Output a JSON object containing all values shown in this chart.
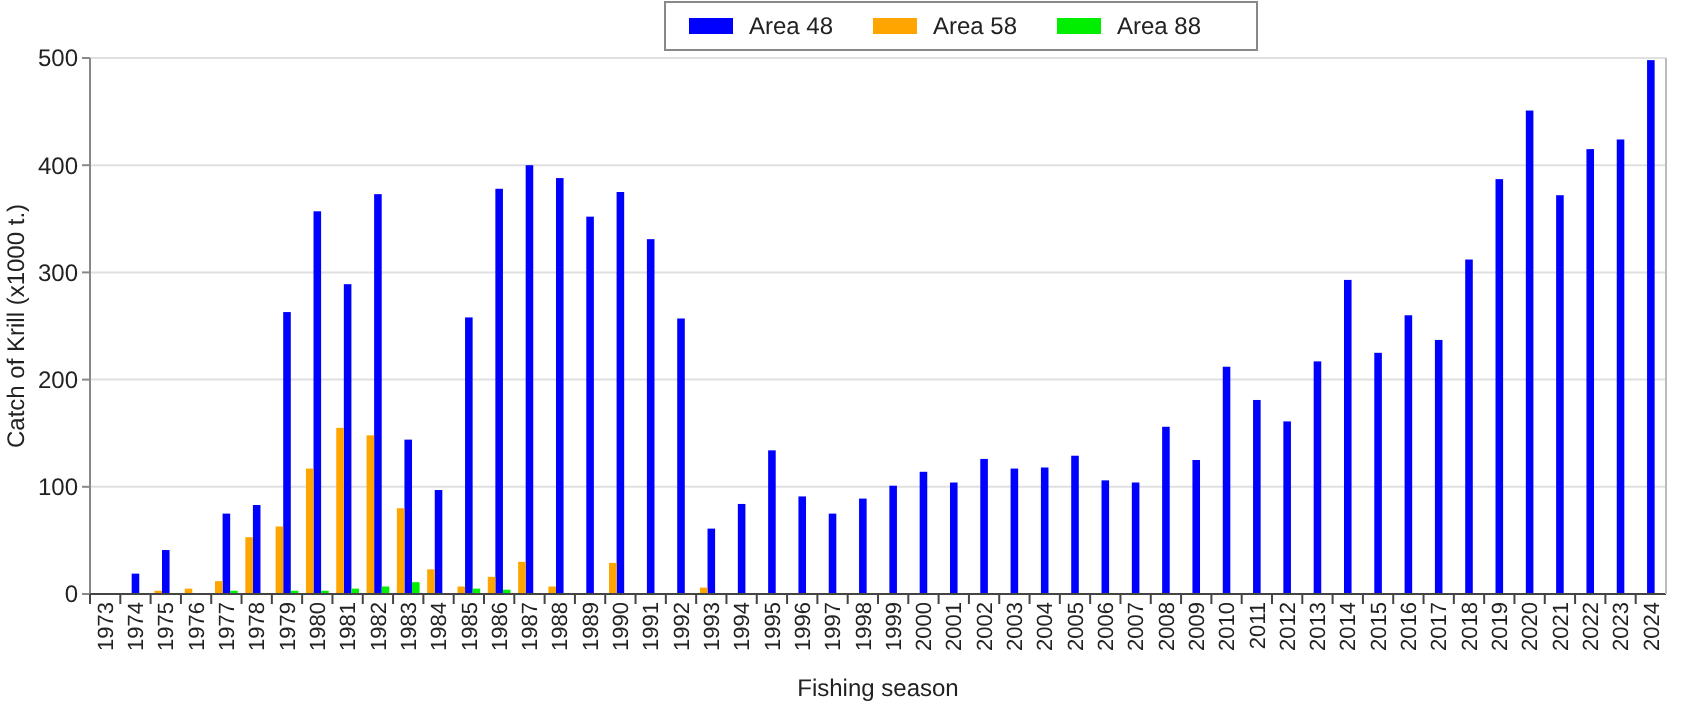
{
  "chart_data": {
    "type": "bar",
    "xlabel": "Fishing season",
    "ylabel": "Catch of Krill (x1000 t.)",
    "categories": [
      "1973",
      "1974",
      "1975",
      "1976",
      "1977",
      "1978",
      "1979",
      "1980",
      "1981",
      "1982",
      "1983",
      "1984",
      "1985",
      "1986",
      "1987",
      "1988",
      "1989",
      "1990",
      "1991",
      "1992",
      "1993",
      "1994",
      "1995",
      "1996",
      "1997",
      "1998",
      "1999",
      "2000",
      "2001",
      "2002",
      "2003",
      "2004",
      "2005",
      "2006",
      "2007",
      "2008",
      "2009",
      "2010",
      "2011",
      "2012",
      "2013",
      "2014",
      "2015",
      "2016",
      "2017",
      "2018",
      "2019",
      "2020",
      "2021",
      "2022",
      "2023",
      "2024"
    ],
    "series": [
      {
        "name": "Area 48",
        "color": "#0000ff",
        "values": [
          0,
          19,
          41,
          null,
          75,
          83,
          263,
          357,
          289,
          373,
          144,
          97,
          258,
          378,
          400,
          388,
          352,
          375,
          331,
          257,
          61,
          84,
          134,
          91,
          75,
          89,
          101,
          114,
          104,
          126,
          117,
          118,
          129,
          106,
          104,
          156,
          125,
          212,
          181,
          161,
          217,
          293,
          225,
          260,
          237,
          312,
          387,
          451,
          372,
          415,
          424,
          498
        ]
      },
      {
        "name": "Area 58",
        "color": "#ffa500",
        "values": [
          0,
          0,
          3,
          5,
          12,
          53,
          63,
          117,
          155,
          148,
          80,
          23,
          7,
          16,
          30,
          7,
          0,
          29,
          null,
          0,
          6,
          null,
          null,
          0,
          0,
          0,
          0,
          0,
          0,
          0,
          0,
          0,
          0,
          0,
          0,
          0,
          0,
          0,
          0,
          0,
          0,
          0,
          0,
          0,
          0,
          0,
          0,
          0,
          0,
          0,
          0,
          0
        ]
      },
      {
        "name": "Area 88",
        "color": "#00ee00",
        "values": [
          0,
          0,
          0,
          0,
          3,
          0,
          3,
          3,
          5,
          7,
          11,
          0,
          5,
          4,
          0,
          0,
          0,
          0,
          0,
          0,
          0,
          0,
          0,
          0,
          0,
          0,
          0,
          0,
          0,
          0,
          0,
          0,
          0,
          0,
          0,
          0,
          0,
          0,
          0,
          0,
          0,
          0,
          0,
          0,
          0,
          0,
          0,
          0,
          0,
          0,
          0,
          0
        ]
      }
    ],
    "ylim": [
      0,
      500
    ],
    "yticks": [
      0,
      100,
      200,
      300,
      400,
      500
    ],
    "grid": "y",
    "legend": "top"
  }
}
